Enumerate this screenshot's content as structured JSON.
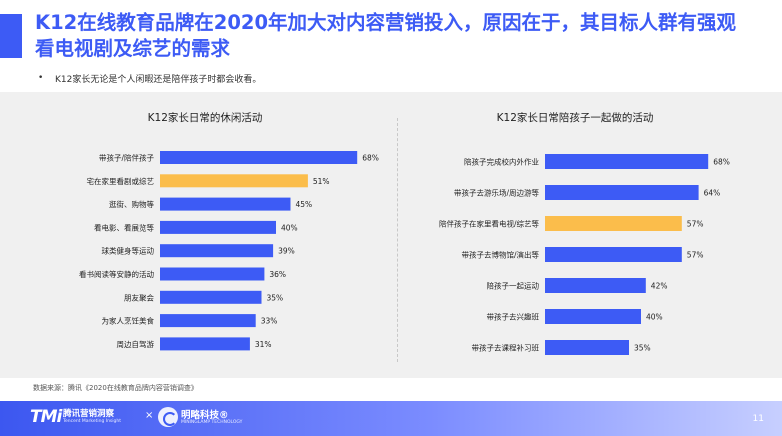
{
  "header": {
    "title": "K12在线教育品牌在2020年加大对内容营销投入，原因在于，其目标人群有强观看电视剧及综艺的需求",
    "bullet": "•",
    "bullet_text": "K12家长无论是个人闲暇还是陪伴孩子时都会收看。"
  },
  "colors": {
    "accent": "#3d5bf5",
    "bar_default": "#3d5bf5",
    "bar_highlight": "#fbbd4b",
    "panel_bg": "#f0f0f0"
  },
  "chart_data": [
    {
      "type": "bar",
      "orientation": "horizontal",
      "title": "K12家长日常的休闲活动",
      "categories": [
        "带孩子/陪伴孩子",
        "宅在家里看剧或综艺",
        "逛街、购物等",
        "看电影、看展览等",
        "球类健身等运动",
        "看书阅读等安静的活动",
        "朋友聚会",
        "为家人烹饪美食",
        "周边自驾游"
      ],
      "values": [
        68,
        51,
        45,
        40,
        39,
        36,
        35,
        33,
        31
      ],
      "value_labels": [
        "68%",
        "51%",
        "45%",
        "40%",
        "39%",
        "36%",
        "35%",
        "33%",
        "31%"
      ],
      "highlight_index": 1,
      "unit": "%"
    },
    {
      "type": "bar",
      "orientation": "horizontal",
      "title": "K12家长日常陪孩子一起做的活动",
      "categories": [
        "陪孩子完成校内外作业",
        "带孩子去游乐场/周边游等",
        "陪伴孩子在家里看电视/综艺等",
        "带孩子去博物馆/演出等",
        "陪孩子一起运动",
        "带孩子去兴趣班",
        "带孩子去课程补习班"
      ],
      "values": [
        68,
        64,
        57,
        57,
        42,
        40,
        35
      ],
      "value_labels": [
        "68%",
        "64%",
        "57%",
        "57%",
        "42%",
        "40%",
        "35%"
      ],
      "highlight_index": 2,
      "unit": "%"
    }
  ],
  "footer": {
    "source": "数据来源：腾讯《2020在线教育品牌内容营销调查》",
    "tmi_logo": "TMi",
    "tmi_name": "腾讯营销洞察",
    "tmi_sub": "Tencent Marketing Insight",
    "cross": "×",
    "ml_name": "明略科技®",
    "ml_sub": "MININGLAMP TECHNOLOGY",
    "page": "11"
  }
}
